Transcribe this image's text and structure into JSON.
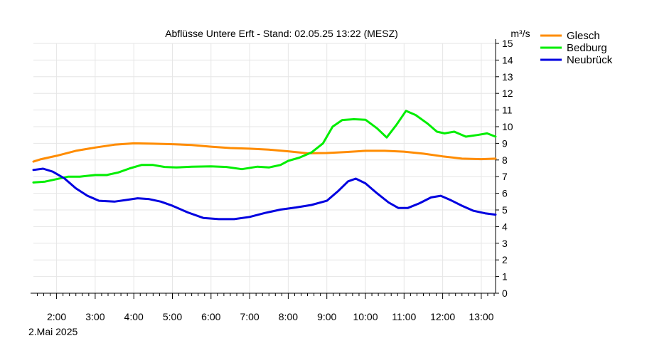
{
  "chart_data": {
    "type": "line",
    "title": "Abflüsse Untere Erft - Stand: 02.05.25 13:22 (MESZ)",
    "ylabel": "m³/s",
    "date_label": "2.Mai 2025",
    "x_unit": "time of day (hours), 2 Mai 2025",
    "xlim": [
      1.4,
      13.37
    ],
    "ylim": [
      0,
      15
    ],
    "y_ticks": [
      "0",
      "1",
      "2",
      "3",
      "4",
      "5",
      "6",
      "7",
      "8",
      "9",
      "10",
      "11",
      "12",
      "13",
      "14",
      "15"
    ],
    "x_ticks": [
      {
        "h": 2,
        "label": "2:00"
      },
      {
        "h": 3,
        "label": "3:00"
      },
      {
        "h": 4,
        "label": "4:00"
      },
      {
        "h": 5,
        "label": "5:00"
      },
      {
        "h": 6,
        "label": "6:00"
      },
      {
        "h": 7,
        "label": "7:00"
      },
      {
        "h": 8,
        "label": "8:00"
      },
      {
        "h": 9,
        "label": "9:00"
      },
      {
        "h": 10,
        "label": "10:00"
      },
      {
        "h": 11,
        "label": "11:00"
      },
      {
        "h": 12,
        "label": "12:00"
      },
      {
        "h": 13,
        "label": "13:00"
      }
    ],
    "grid": true,
    "legend_position": "top-right, outside plot",
    "series": [
      {
        "name": "Glesch",
        "color": "#ff8c00",
        "points": [
          [
            1.4,
            7.9
          ],
          [
            1.6,
            8.05
          ],
          [
            2.0,
            8.25
          ],
          [
            2.5,
            8.55
          ],
          [
            3.0,
            8.75
          ],
          [
            3.5,
            8.92
          ],
          [
            4.0,
            9.0
          ],
          [
            4.5,
            8.98
          ],
          [
            5.0,
            8.95
          ],
          [
            5.5,
            8.9
          ],
          [
            6.0,
            8.8
          ],
          [
            6.5,
            8.72
          ],
          [
            7.0,
            8.68
          ],
          [
            7.5,
            8.62
          ],
          [
            8.0,
            8.52
          ],
          [
            8.5,
            8.4
          ],
          [
            9.0,
            8.42
          ],
          [
            9.5,
            8.48
          ],
          [
            10.0,
            8.55
          ],
          [
            10.5,
            8.55
          ],
          [
            11.0,
            8.5
          ],
          [
            11.5,
            8.38
          ],
          [
            12.0,
            8.22
          ],
          [
            12.5,
            8.08
          ],
          [
            13.0,
            8.05
          ],
          [
            13.37,
            8.08
          ]
        ]
      },
      {
        "name": "Bedburg",
        "color": "#00ee00",
        "points": [
          [
            1.4,
            6.65
          ],
          [
            1.7,
            6.7
          ],
          [
            2.0,
            6.85
          ],
          [
            2.3,
            7.0
          ],
          [
            2.6,
            7.0
          ],
          [
            3.0,
            7.1
          ],
          [
            3.3,
            7.1
          ],
          [
            3.6,
            7.25
          ],
          [
            3.9,
            7.5
          ],
          [
            4.2,
            7.7
          ],
          [
            4.5,
            7.7
          ],
          [
            4.8,
            7.58
          ],
          [
            5.1,
            7.55
          ],
          [
            5.5,
            7.6
          ],
          [
            6.0,
            7.62
          ],
          [
            6.4,
            7.58
          ],
          [
            6.8,
            7.45
          ],
          [
            7.2,
            7.6
          ],
          [
            7.5,
            7.55
          ],
          [
            7.8,
            7.7
          ],
          [
            8.0,
            7.95
          ],
          [
            8.3,
            8.15
          ],
          [
            8.6,
            8.45
          ],
          [
            8.9,
            9.0
          ],
          [
            9.15,
            10.0
          ],
          [
            9.4,
            10.4
          ],
          [
            9.7,
            10.45
          ],
          [
            10.0,
            10.42
          ],
          [
            10.3,
            9.9
          ],
          [
            10.55,
            9.35
          ],
          [
            10.8,
            10.1
          ],
          [
            11.05,
            10.95
          ],
          [
            11.3,
            10.7
          ],
          [
            11.6,
            10.2
          ],
          [
            11.85,
            9.7
          ],
          [
            12.05,
            9.6
          ],
          [
            12.3,
            9.7
          ],
          [
            12.6,
            9.4
          ],
          [
            12.9,
            9.5
          ],
          [
            13.15,
            9.6
          ],
          [
            13.37,
            9.4
          ]
        ]
      },
      {
        "name": "Neubrück",
        "color": "#0000e0",
        "points": [
          [
            1.4,
            7.4
          ],
          [
            1.65,
            7.48
          ],
          [
            1.9,
            7.3
          ],
          [
            2.2,
            6.9
          ],
          [
            2.5,
            6.3
          ],
          [
            2.8,
            5.85
          ],
          [
            3.1,
            5.55
          ],
          [
            3.5,
            5.5
          ],
          [
            3.8,
            5.6
          ],
          [
            4.1,
            5.7
          ],
          [
            4.4,
            5.65
          ],
          [
            4.7,
            5.5
          ],
          [
            5.0,
            5.25
          ],
          [
            5.4,
            4.85
          ],
          [
            5.8,
            4.52
          ],
          [
            6.2,
            4.45
          ],
          [
            6.6,
            4.45
          ],
          [
            7.0,
            4.58
          ],
          [
            7.4,
            4.82
          ],
          [
            7.8,
            5.02
          ],
          [
            8.2,
            5.15
          ],
          [
            8.6,
            5.3
          ],
          [
            9.0,
            5.55
          ],
          [
            9.3,
            6.15
          ],
          [
            9.55,
            6.72
          ],
          [
            9.75,
            6.88
          ],
          [
            10.0,
            6.6
          ],
          [
            10.3,
            6.0
          ],
          [
            10.6,
            5.45
          ],
          [
            10.85,
            5.12
          ],
          [
            11.1,
            5.12
          ],
          [
            11.4,
            5.4
          ],
          [
            11.7,
            5.75
          ],
          [
            11.95,
            5.85
          ],
          [
            12.2,
            5.6
          ],
          [
            12.5,
            5.25
          ],
          [
            12.8,
            4.95
          ],
          [
            13.1,
            4.8
          ],
          [
            13.37,
            4.72
          ]
        ]
      }
    ]
  }
}
